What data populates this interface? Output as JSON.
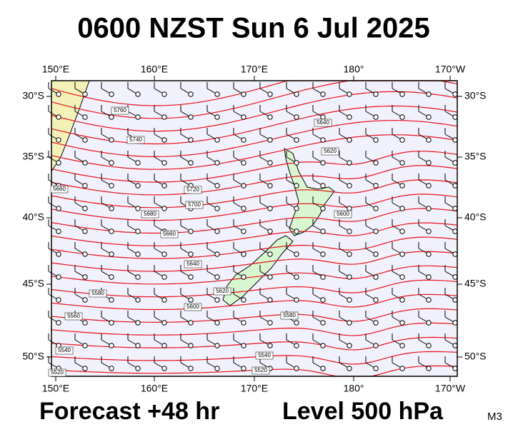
{
  "title": "0600 NZST Sun 6 Jul 2025",
  "lon_labels": [
    "150°E",
    "160°E",
    "170°E",
    "180°",
    "170°W"
  ],
  "lat_labels": [
    "30°S",
    "35°S",
    "40°S",
    "45°S",
    "50°S"
  ],
  "contour_labels": [
    "5760",
    "5740",
    "5720",
    "5700",
    "5680",
    "5660",
    "5640",
    "5620",
    "5600",
    "5580",
    "5560",
    "5540",
    "5520",
    "5540",
    "5520",
    "5580",
    "5600",
    "5620",
    "5640",
    "5660"
  ],
  "footer": {
    "forecast": "Forecast +48 hr",
    "level": "Level 500 hPa",
    "model": "M3"
  }
}
